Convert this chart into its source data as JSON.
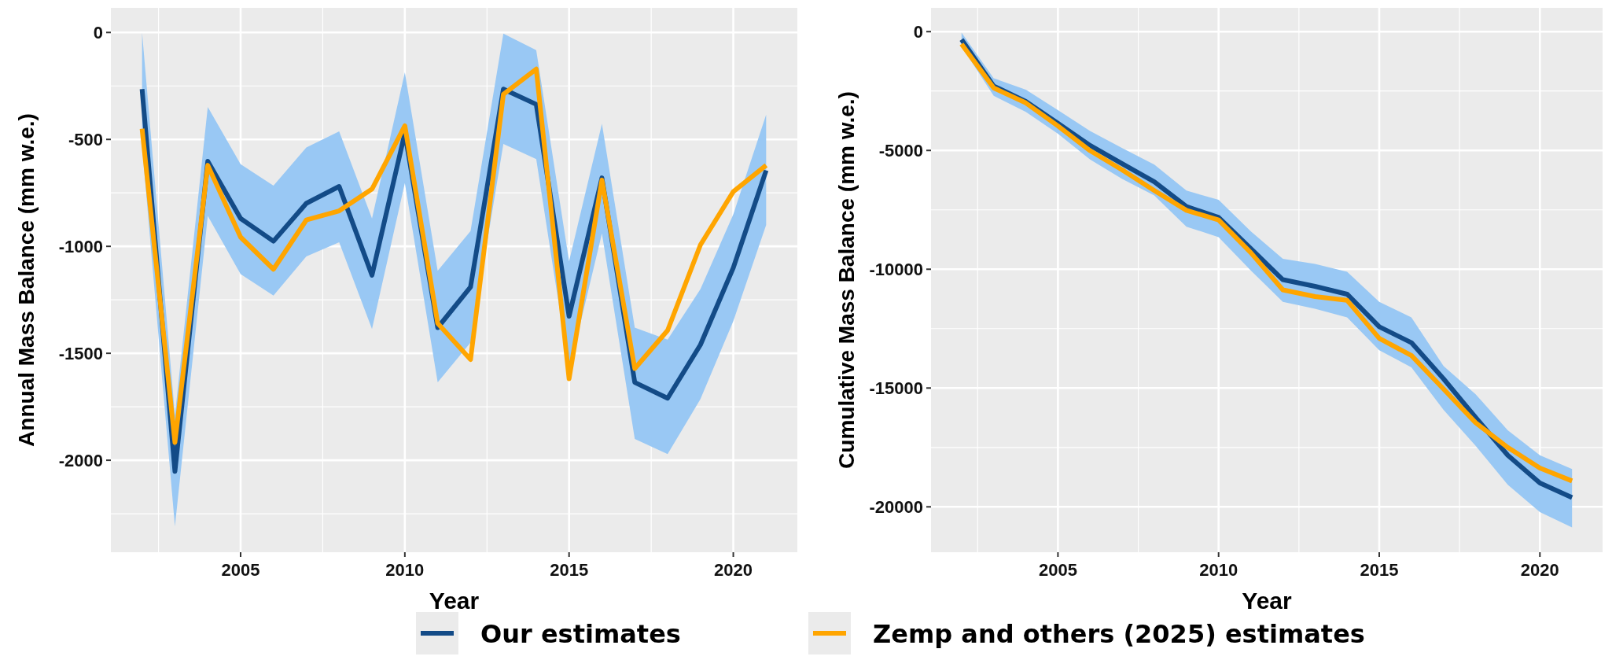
{
  "chart_data": [
    {
      "type": "line",
      "xlabel": "Year",
      "ylabel": "Annual Mass Balance (mm w.e.)",
      "x": [
        2002,
        2003,
        2004,
        2005,
        2006,
        2007,
        2008,
        2009,
        2010,
        2011,
        2012,
        2013,
        2014,
        2015,
        2016,
        2017,
        2018,
        2019,
        2020,
        2021
      ],
      "xlim": [
        2001.05,
        2021.95
      ],
      "xticks": [
        2005,
        2010,
        2015,
        2020
      ],
      "ylim": [
        -2430,
        115
      ],
      "yticks": [
        0,
        -500,
        -1000,
        -1500,
        -2000
      ],
      "grid": true,
      "legend": "bottom",
      "series": [
        {
          "name": "Our estimates",
          "color": "#134b87",
          "values": [
            -265,
            -2052,
            -602,
            -870,
            -976,
            -799,
            -720,
            -1135,
            -470,
            -1380,
            -1190,
            -265,
            -336,
            -1327,
            -680,
            -1636,
            -1710,
            -1460,
            -1100,
            -645
          ],
          "lower": [
            -530,
            -2310,
            -858,
            -1130,
            -1230,
            -1047,
            -981,
            -1386,
            -704,
            -1636,
            -1450,
            -521,
            -592,
            -1580,
            -940,
            -1900,
            -1971,
            -1714,
            -1350,
            -900
          ],
          "upper": [
            0,
            -1790,
            -348,
            -616,
            -716,
            -538,
            -462,
            -870,
            -187,
            -1114,
            -929,
            -5,
            -83,
            -1070,
            -427,
            -1380,
            -1436,
            -1200,
            -850,
            -384
          ]
        },
        {
          "name": "Zemp and others (2025) estimates",
          "color": "#ffa500",
          "values": [
            -450,
            -1917,
            -621,
            -957,
            -1107,
            -877,
            -834,
            -732,
            -436,
            -1360,
            -1529,
            -289,
            -171,
            -1619,
            -690,
            -1571,
            -1393,
            -993,
            -744,
            -621
          ]
        }
      ]
    },
    {
      "type": "line",
      "xlabel": "Year",
      "ylabel": "Cumulative Mass Balance (mm w.e.)",
      "x": [
        2002,
        2003,
        2004,
        2005,
        2006,
        2007,
        2008,
        2009,
        2010,
        2011,
        2012,
        2013,
        2014,
        2015,
        2016,
        2017,
        2018,
        2019,
        2020,
        2021
      ],
      "xlim": [
        2001.05,
        2021.95
      ],
      "xticks": [
        2005,
        2010,
        2015,
        2020
      ],
      "ylim": [
        -21910,
        1000
      ],
      "yticks": [
        0,
        -5000,
        -10000,
        -15000,
        -20000
      ],
      "grid": true,
      "series": [
        {
          "color": "#134b87",
          "values": [
            -330,
            -2290,
            -2940,
            -3860,
            -4790,
            -5560,
            -6320,
            -7360,
            -7820,
            -9130,
            -10440,
            -10720,
            -11050,
            -12420,
            -13090,
            -14610,
            -16240,
            -17830,
            -19000,
            -19610
          ],
          "lower": [
            -620,
            -2700,
            -3380,
            -4300,
            -5380,
            -6200,
            -6900,
            -8210,
            -8650,
            -10050,
            -11370,
            -11660,
            -12030,
            -13410,
            -14130,
            -15920,
            -17430,
            -19070,
            -20220,
            -20870
          ],
          "upper": [
            -40,
            -1960,
            -2440,
            -3300,
            -4180,
            -4900,
            -5600,
            -6690,
            -7080,
            -8400,
            -9560,
            -9780,
            -10110,
            -11370,
            -12030,
            -14070,
            -15260,
            -16780,
            -17830,
            -18410
          ]
        },
        {
          "color": "#ffa500",
          "values": [
            -520,
            -2370,
            -3000,
            -3970,
            -5010,
            -5820,
            -6690,
            -7520,
            -7930,
            -9300,
            -10870,
            -11150,
            -11310,
            -12910,
            -13630,
            -15040,
            -16460,
            -17500,
            -18370,
            -18910
          ]
        }
      ]
    }
  ]
}
